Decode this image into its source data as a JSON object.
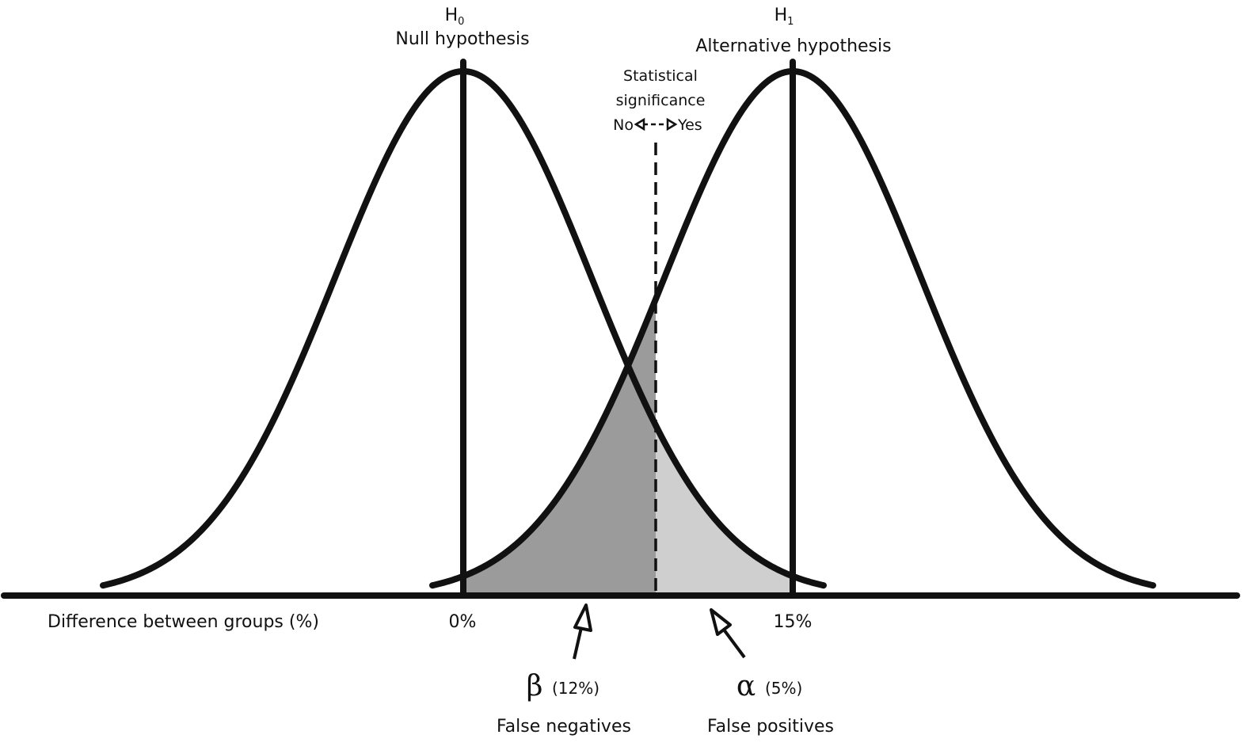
{
  "null_hypothesis": {
    "symbol": "H",
    "subscript": "0",
    "label": "Null hypothesis"
  },
  "alternative_hypothesis": {
    "symbol": "H",
    "subscript": "1",
    "label": "Alternative hypothesis"
  },
  "significance": {
    "line1": "Statistical",
    "line2": "significance",
    "no": "No",
    "yes": "Yes"
  },
  "axis": {
    "label": "Difference between groups (%)",
    "tick_null": "0%",
    "tick_alt": "15%"
  },
  "beta": {
    "symbol": "β",
    "value": "(12%)",
    "label": "False negatives"
  },
  "alpha": {
    "symbol": "α",
    "value": "(5%)",
    "label": "False positives"
  },
  "colors": {
    "line": "#111111",
    "beta_fill": "#9b9b9b",
    "alpha_fill": "#cfcfcf",
    "background": "#ffffff"
  }
}
